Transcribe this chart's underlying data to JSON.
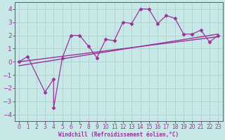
{
  "x_data": [
    0,
    1,
    3,
    4,
    4,
    5,
    6,
    7,
    8,
    9,
    10,
    11,
    12,
    13,
    14,
    15,
    16,
    17,
    18,
    19,
    20,
    21,
    22,
    23
  ],
  "y_data": [
    0.0,
    0.4,
    -2.3,
    -1.3,
    -3.5,
    0.3,
    2.0,
    2.0,
    1.2,
    0.3,
    1.7,
    1.6,
    3.0,
    2.9,
    4.0,
    4.0,
    2.9,
    3.5,
    3.3,
    2.1,
    2.1,
    2.4,
    1.5,
    2.0
  ],
  "line1_x": [
    0,
    23
  ],
  "line1_y": [
    0.0,
    1.9
  ],
  "line2_x": [
    0,
    23
  ],
  "line2_y": [
    -0.3,
    2.1
  ],
  "data_color": "#993399",
  "line_color": "#993399",
  "bg_color": "#c8e8e8",
  "grid_color": "#b0d0d0",
  "xlabel": "Windchill (Refroidissement éolien,°C)",
  "xlim": [
    -0.5,
    23.5
  ],
  "ylim": [
    -4.5,
    4.5
  ],
  "yticks": [
    -4,
    -3,
    -2,
    -1,
    0,
    1,
    2,
    3,
    4
  ],
  "xticks": [
    0,
    1,
    2,
    3,
    4,
    5,
    6,
    7,
    8,
    9,
    10,
    11,
    12,
    13,
    14,
    15,
    16,
    17,
    18,
    19,
    20,
    21,
    22,
    23
  ]
}
